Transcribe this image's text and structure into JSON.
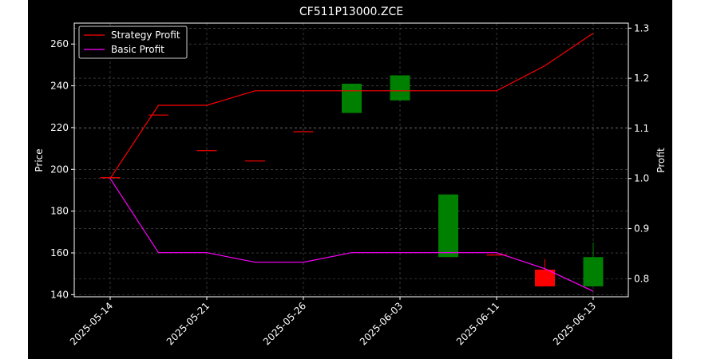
{
  "chart_data": {
    "type": "candlestick",
    "title": "CF511P13000.ZCE",
    "ylabel": "Price",
    "y2label": "Profit",
    "ylim": [
      139,
      270
    ],
    "y2lim": [
      0.764,
      1.31
    ],
    "yticks": [
      140,
      160,
      180,
      200,
      220,
      240,
      260
    ],
    "y2ticks": [
      0.8,
      0.9,
      1.0,
      1.1,
      1.2,
      1.3
    ],
    "xticks": [
      "2025-05-14",
      "2025-05-21",
      "2025-05-26",
      "2025-06-03",
      "2025-06-11",
      "2025-06-13"
    ],
    "grid": true,
    "legend": "upper-left",
    "candles": [
      {
        "x": 0,
        "open": 196,
        "high": 196,
        "low": 196,
        "close": 196,
        "color": "#ff0000"
      },
      {
        "x": 1,
        "open": 226,
        "high": 226,
        "low": 226,
        "close": 226,
        "color": "#ff0000"
      },
      {
        "x": 2,
        "open": 209,
        "high": 209,
        "low": 209,
        "close": 209,
        "color": "#ff0000"
      },
      {
        "x": 3,
        "open": 204,
        "high": 204,
        "low": 204,
        "close": 204,
        "color": "#ff0000"
      },
      {
        "x": 4,
        "open": 218,
        "high": 218,
        "low": 218,
        "close": 218,
        "color": "#ff0000"
      },
      {
        "x": 5,
        "open": 227,
        "high": 241,
        "low": 227,
        "close": 241,
        "color": "#008000"
      },
      {
        "x": 6,
        "open": 233,
        "high": 245,
        "low": 233,
        "close": 245,
        "color": "#008000"
      },
      {
        "x": 7,
        "open": 158,
        "high": 188,
        "low": 158,
        "close": 188,
        "color": "#008000"
      },
      {
        "x": 8,
        "open": 159,
        "high": 159,
        "low": 159,
        "close": 159,
        "color": "#ff0000"
      },
      {
        "x": 9,
        "open": 152,
        "high": 157,
        "low": 144,
        "close": 144,
        "color": "#ff0000"
      },
      {
        "x": 10,
        "open": 144,
        "high": 165,
        "low": 144,
        "close": 158,
        "color": "#008000"
      }
    ],
    "series": [
      {
        "name": "Strategy Profit",
        "color": "#ff0000",
        "values": [
          1.0,
          1.146,
          1.146,
          1.175,
          1.175,
          1.175,
          1.175,
          1.175,
          1.175,
          1.225,
          1.29
        ]
      },
      {
        "name": "Basic Profit",
        "color": "#ff00ff",
        "values": [
          1.0,
          0.852,
          0.852,
          0.833,
          0.833,
          0.852,
          0.852,
          0.852,
          0.852,
          0.82,
          0.775
        ]
      }
    ]
  }
}
